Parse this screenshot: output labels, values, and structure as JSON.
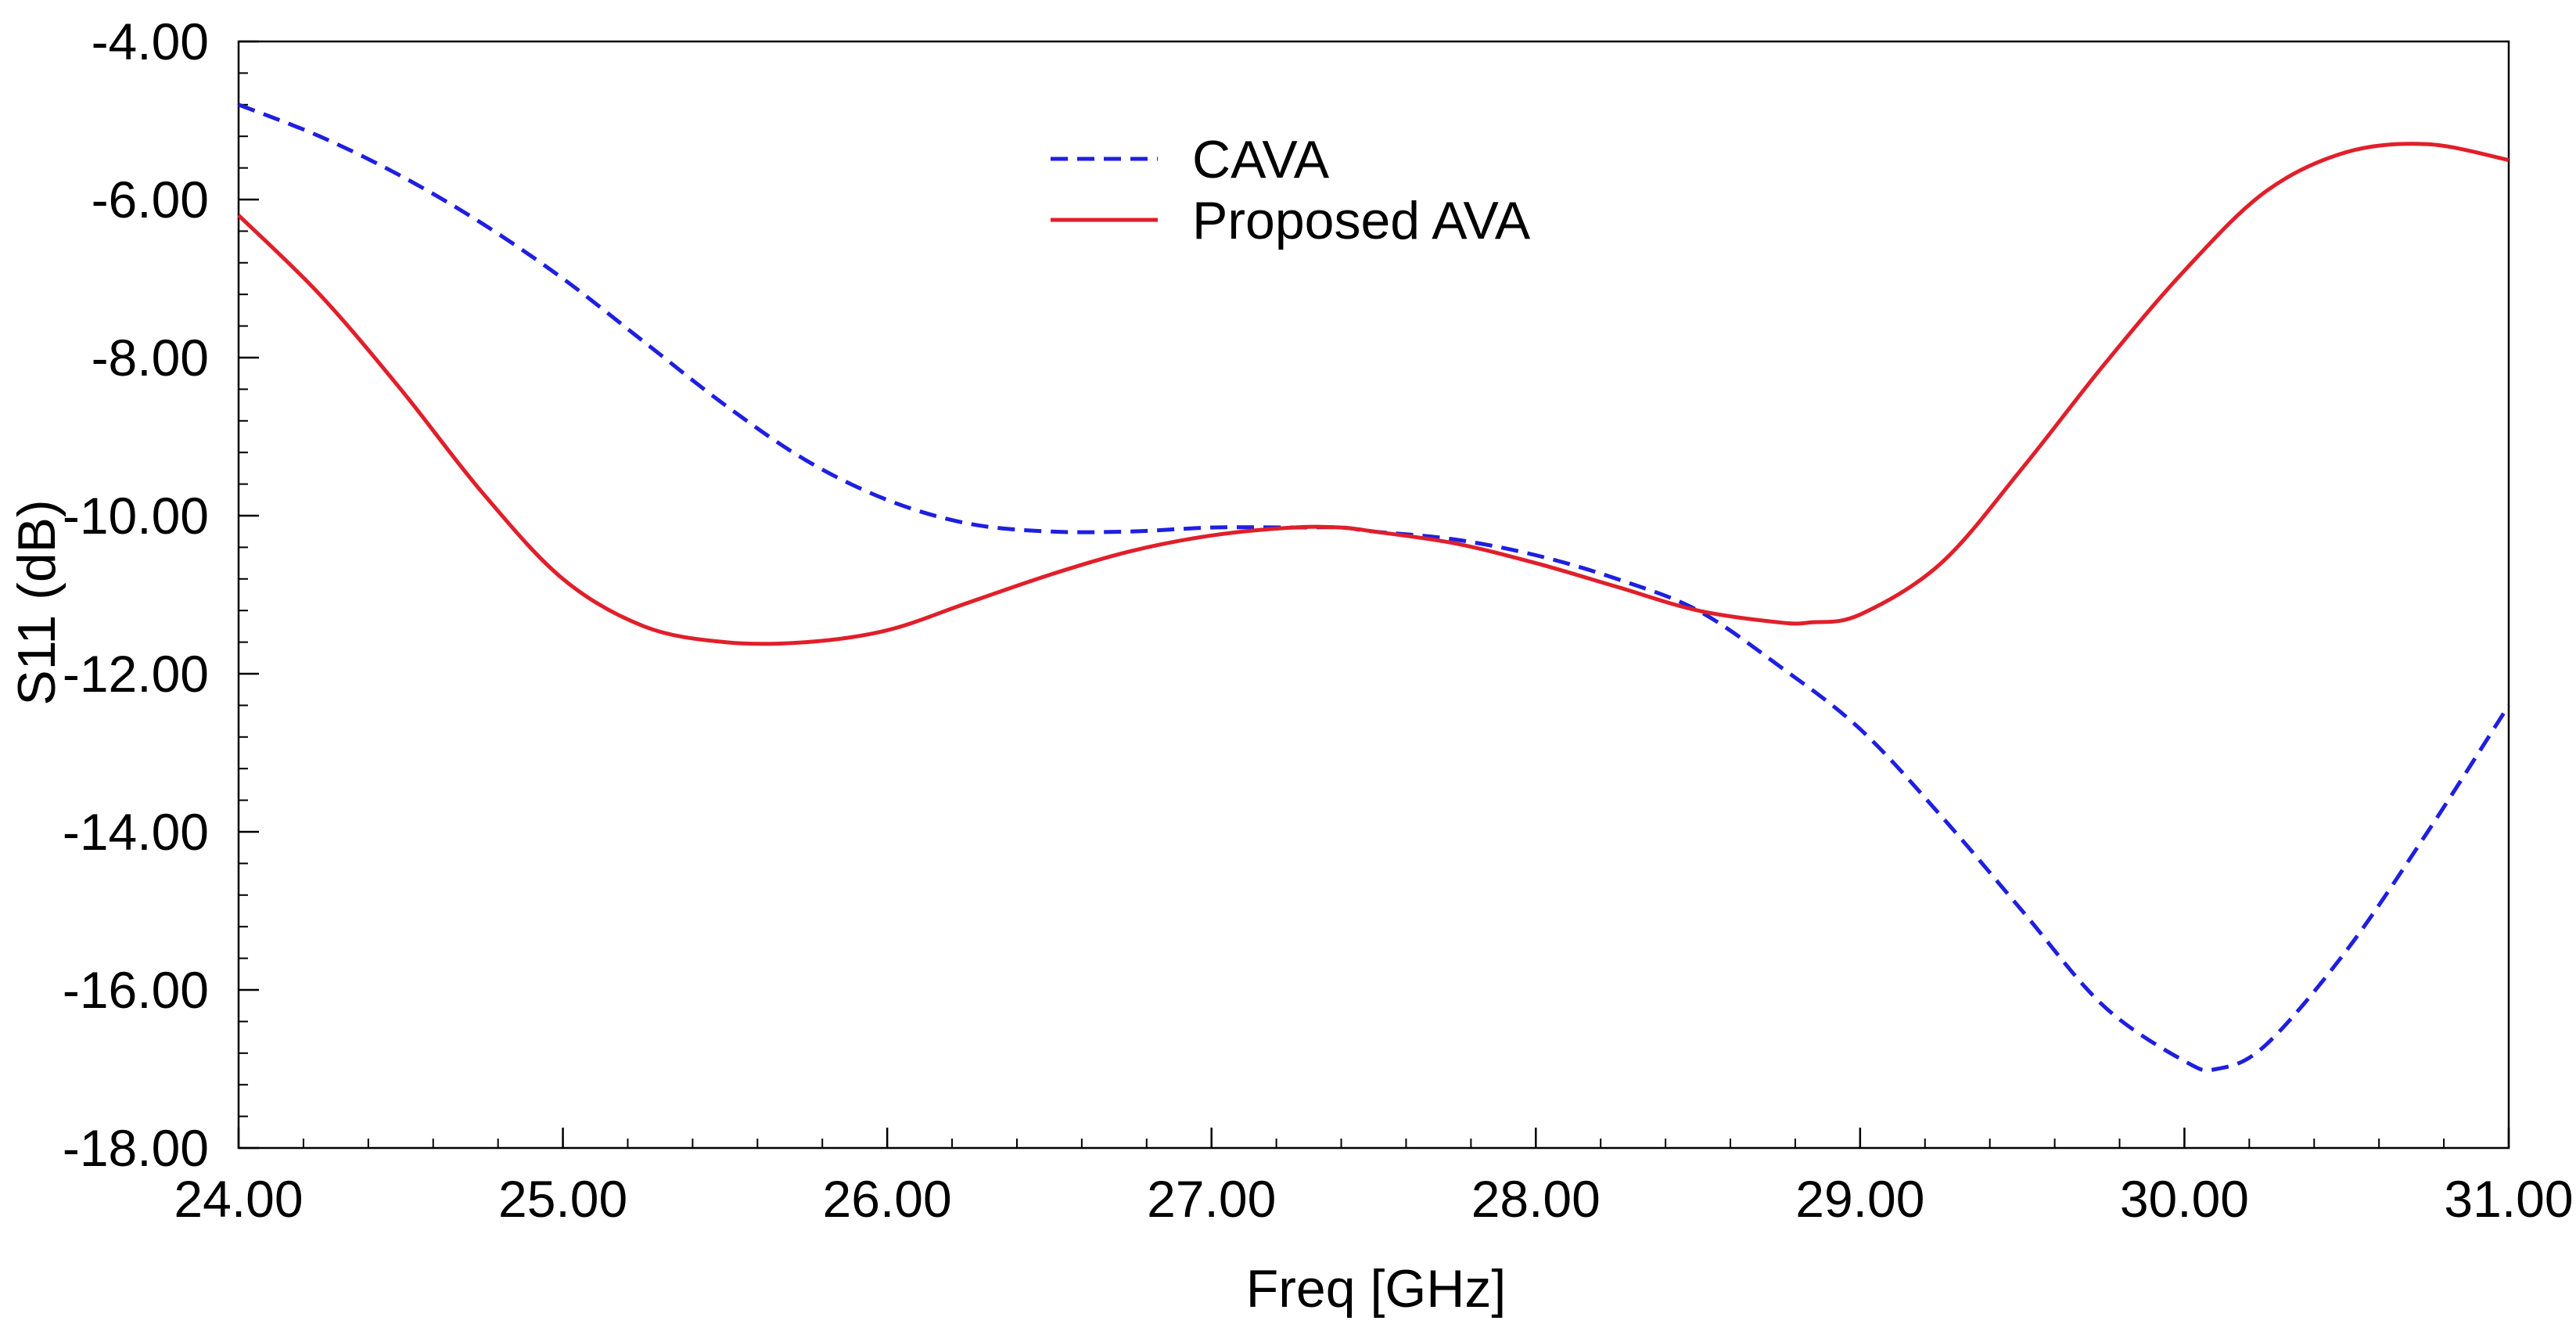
{
  "chart_data": {
    "type": "line",
    "xlabel": "Freq [GHz]",
    "ylabel": "S11 (dB)",
    "xlim": [
      24.0,
      31.0
    ],
    "ylim": [
      -18.0,
      -4.0
    ],
    "x_ticks": [
      "24.00",
      "25.00",
      "26.00",
      "27.00",
      "28.00",
      "29.00",
      "30.00",
      "31.00"
    ],
    "y_ticks": [
      "-4.00",
      "-6.00",
      "-8.00",
      "-10.00",
      "-12.00",
      "-14.00",
      "-16.00",
      "-18.00"
    ],
    "grid": false,
    "legend_position": "top-center",
    "series": [
      {
        "name": "CAVA",
        "color": "#1f1fe0",
        "style": "dashed",
        "x": [
          24.0,
          24.25,
          24.5,
          24.75,
          25.0,
          25.25,
          25.5,
          25.75,
          26.0,
          26.25,
          26.5,
          26.75,
          27.0,
          27.25,
          27.4,
          27.5,
          27.75,
          28.0,
          28.25,
          28.5,
          28.75,
          29.0,
          29.25,
          29.5,
          29.75,
          30.0,
          30.1,
          30.25,
          30.5,
          30.75,
          31.0
        ],
        "y": [
          -4.8,
          -5.2,
          -5.7,
          -6.3,
          -7.0,
          -7.8,
          -8.6,
          -9.3,
          -9.8,
          -10.1,
          -10.2,
          -10.2,
          -10.15,
          -10.15,
          -10.15,
          -10.2,
          -10.3,
          -10.5,
          -10.8,
          -11.2,
          -11.9,
          -12.7,
          -13.8,
          -15.0,
          -16.2,
          -16.9,
          -17.0,
          -16.7,
          -15.5,
          -14.0,
          -12.4
        ]
      },
      {
        "name": "Proposed AVA",
        "color": "#e01f2a",
        "style": "solid",
        "x": [
          24.0,
          24.25,
          24.5,
          24.75,
          25.0,
          25.25,
          25.5,
          25.75,
          26.0,
          26.25,
          26.5,
          26.75,
          27.0,
          27.25,
          27.4,
          27.5,
          27.75,
          28.0,
          28.25,
          28.5,
          28.75,
          28.85,
          29.0,
          29.25,
          29.5,
          29.75,
          30.0,
          30.25,
          30.5,
          30.75,
          31.0
        ],
        "y": [
          -6.2,
          -7.2,
          -8.4,
          -9.7,
          -10.8,
          -11.4,
          -11.6,
          -11.6,
          -11.45,
          -11.1,
          -10.75,
          -10.45,
          -10.25,
          -10.15,
          -10.15,
          -10.2,
          -10.35,
          -10.6,
          -10.9,
          -11.2,
          -11.35,
          -11.35,
          -11.25,
          -10.6,
          -9.4,
          -8.1,
          -6.9,
          -5.9,
          -5.4,
          -5.3,
          -5.5
        ]
      }
    ]
  }
}
